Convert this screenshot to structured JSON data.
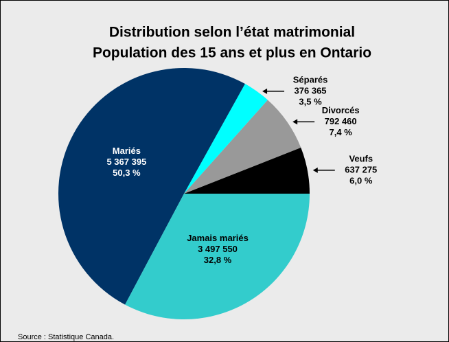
{
  "chart_data": {
    "type": "pie",
    "title": "Distribution selon l’état matrimonial",
    "subtitle": "Population des 15 ans et plus en Ontario",
    "categories": [
      "Veufs",
      "Divorcés",
      "Séparés",
      "Mariés",
      "Jamais mariés"
    ],
    "values": [
      637275,
      792460,
      376365,
      5367395,
      3497550
    ],
    "value_labels": [
      "637 275",
      "792 460",
      "376 365",
      "5 367 395",
      "3 497 550"
    ],
    "percentages": [
      6.0,
      7.4,
      3.5,
      50.3,
      32.8
    ],
    "percentage_labels": [
      "6,0 %",
      "7,4 %",
      "3,5 %",
      "50,3 %",
      "32,8 %"
    ],
    "colors": [
      "#000000",
      "#999999",
      "#00ffff",
      "#003366",
      "#33cccc"
    ],
    "source": "Source : Statistique Canada."
  }
}
